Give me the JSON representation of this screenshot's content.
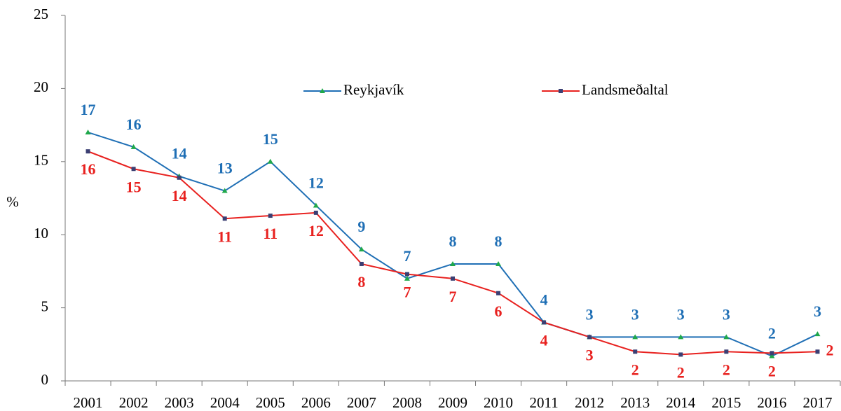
{
  "chart_data": {
    "type": "line",
    "ylabel": "%",
    "categories": [
      "2001",
      "2002",
      "2003",
      "2004",
      "2005",
      "2006",
      "2007",
      "2008",
      "2009",
      "2010",
      "2011",
      "2012",
      "2013",
      "2014",
      "2015",
      "2016",
      "2017"
    ],
    "series": [
      {
        "name": "Reykjavík",
        "color": "#1f6fb5",
        "marker": "triangle",
        "marker_color": "#1fa84a",
        "values": [
          17,
          16,
          14,
          13,
          15,
          12,
          9,
          7,
          8,
          8,
          4,
          3,
          3,
          3,
          3,
          1.7,
          3.2
        ],
        "value_labels": [
          "17",
          "16",
          "14",
          "13",
          "15",
          "12",
          "9",
          "7",
          "8",
          "8",
          "4",
          "3",
          "3",
          "3",
          "3",
          "2",
          "3"
        ]
      },
      {
        "name": "Landsmeðaltal",
        "color": "#e8211f",
        "marker": "square",
        "marker_color": "#3b3f73",
        "values": [
          15.7,
          14.5,
          13.9,
          11.1,
          11.3,
          11.5,
          8.0,
          7.3,
          7.0,
          6.0,
          4.0,
          3.0,
          2.0,
          1.8,
          2.0,
          1.9,
          2.0
        ],
        "value_labels": [
          "16",
          "15",
          "14",
          "11",
          "11",
          "12",
          "8",
          "7",
          "7",
          "6",
          "4",
          "3",
          "2",
          "2",
          "2",
          "2",
          "2"
        ]
      }
    ],
    "ylim": [
      0,
      25
    ],
    "yticks": [
      0,
      5,
      10,
      15,
      20,
      25
    ],
    "grid": false,
    "legend": "top"
  }
}
